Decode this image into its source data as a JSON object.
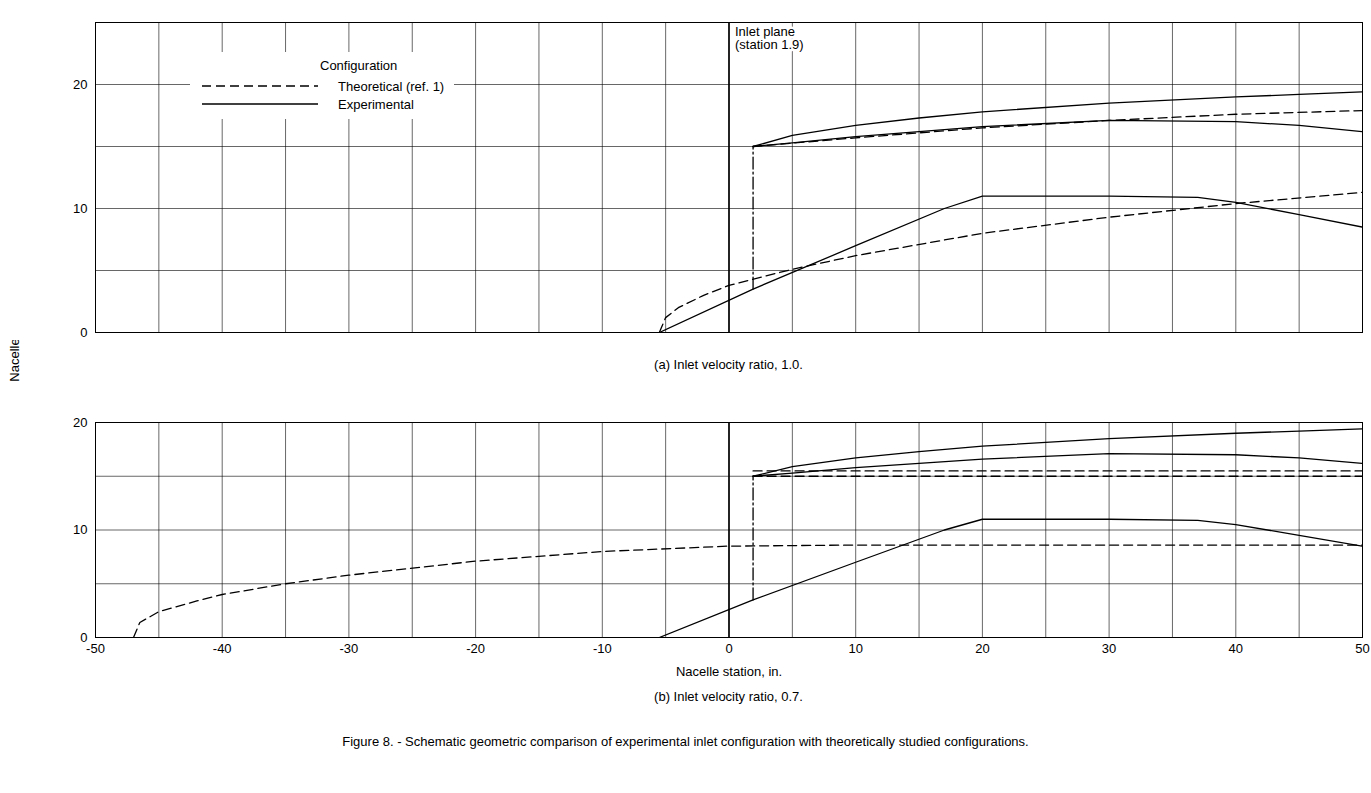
{
  "y_label": "Nacelle radius, in.",
  "caption": "Figure 8. - Schematic geometric comparison of experimental inlet configuration with theoretically studied configurations.",
  "chart_data": [
    {
      "type": "line",
      "title": "(a) Inlet velocity ratio, 1.0.",
      "xlim": [
        -50,
        50
      ],
      "xticks": [
        -50,
        -40,
        -30,
        -20,
        -10,
        0,
        10,
        20,
        30,
        40,
        50
      ],
      "x_minor_ticks": [
        -45,
        -35,
        -25,
        -15,
        -5,
        5,
        15,
        25,
        35,
        45
      ],
      "ylim": [
        0,
        25
      ],
      "yticks": [
        0,
        10,
        20
      ],
      "y_minor_ticks": [
        5,
        15
      ],
      "grid": true,
      "tick_labels": "y",
      "legend": "upper left",
      "legend_title": "Configuration",
      "inlet_plane": 0,
      "annotations": [
        {
          "text": [
            "Inlet plane",
            "(station 1.9)"
          ]
        }
      ],
      "series": [
        {
          "name": "Theoretical (ref. 1)",
          "type": "line",
          "line_style": "dashed",
          "x": [
            -5.5,
            -5,
            -4,
            -2,
            0,
            5,
            10,
            20,
            30,
            40,
            50
          ],
          "values": [
            0,
            1.2,
            2,
            3,
            3.8,
            5.1,
            6.2,
            8,
            9.3,
            10.4,
            11.3
          ]
        },
        {
          "name": "Theoretical (ref. 1)",
          "type": "line",
          "line_style": "dashed",
          "x": [
            1.9,
            10,
            20,
            30,
            40,
            50
          ],
          "values": [
            15,
            15.7,
            16.5,
            17.1,
            17.6,
            17.9
          ]
        },
        {
          "name": "Experimental",
          "type": "line",
          "line_style": "solid",
          "x": [
            -5.5,
            1.9,
            10,
            17,
            20,
            30,
            37,
            40,
            45,
            50
          ],
          "values": [
            0,
            3.5,
            7,
            10,
            11,
            11,
            10.9,
            10.5,
            9.5,
            8.5
          ]
        },
        {
          "name": "Experimental",
          "type": "band",
          "line_style": "solid",
          "x": [
            1.9,
            5,
            10,
            15,
            20,
            30,
            40,
            45,
            50
          ],
          "low": [
            15,
            15.3,
            15.8,
            16.2,
            16.6,
            17.1,
            17,
            16.7,
            16.2
          ],
          "high": [
            15,
            15.9,
            16.7,
            17.3,
            17.8,
            18.5,
            19,
            19.2,
            19.4
          ]
        },
        {
          "type": "line",
          "line_style": "dashdot",
          "x": [
            1.9,
            1.9
          ],
          "values": [
            3.5,
            15
          ]
        }
      ]
    },
    {
      "type": "line",
      "title": "(b) Inlet velocity ratio, 0.7.",
      "x_label": "Nacelle station, in.",
      "xlim": [
        -50,
        50
      ],
      "xticks": [
        -50,
        -40,
        -30,
        -20,
        -10,
        0,
        10,
        20,
        30,
        40,
        50
      ],
      "x_minor_ticks": [
        -45,
        -35,
        -25,
        -15,
        -5,
        5,
        15,
        25,
        35,
        45
      ],
      "ylim": [
        0,
        20
      ],
      "yticks": [
        0,
        10,
        20
      ],
      "y_minor_ticks": [
        5,
        15
      ],
      "grid": true,
      "inlet_plane": 0,
      "series": [
        {
          "name": "Theoretical (ref. 1)",
          "type": "line",
          "line_style": "dashed",
          "x": [
            -47,
            -46.5,
            -45,
            -42,
            -40,
            -35,
            -30,
            -20,
            -10,
            0,
            10,
            20,
            50
          ],
          "values": [
            0,
            1.4,
            2.4,
            3.4,
            4,
            5,
            5.8,
            7.1,
            8,
            8.5,
            8.6,
            8.6,
            8.6
          ]
        },
        {
          "name": "Theoretical (ref. 1)",
          "type": "band",
          "line_style": "dashed",
          "x": [
            1.9,
            50
          ],
          "low": [
            15,
            15
          ],
          "high": [
            15.5,
            15.5
          ]
        },
        {
          "name": "Experimental",
          "type": "line",
          "line_style": "solid",
          "x": [
            -5.5,
            1.9,
            10,
            17,
            20,
            30,
            37,
            40,
            45,
            50
          ],
          "values": [
            0,
            3.5,
            7,
            10,
            11,
            11,
            10.9,
            10.5,
            9.5,
            8.5
          ]
        },
        {
          "name": "Experimental",
          "type": "band",
          "line_style": "solid",
          "x": [
            1.9,
            5,
            10,
            15,
            20,
            30,
            40,
            45,
            50
          ],
          "low": [
            15,
            15.3,
            15.8,
            16.2,
            16.6,
            17.1,
            17,
            16.7,
            16.2
          ],
          "high": [
            15,
            15.9,
            16.7,
            17.3,
            17.8,
            18.5,
            19,
            19.2,
            19.4
          ]
        },
        {
          "type": "line",
          "line_style": "dashdot",
          "x": [
            1.9,
            1.9
          ],
          "values": [
            3.5,
            15
          ]
        }
      ]
    }
  ]
}
